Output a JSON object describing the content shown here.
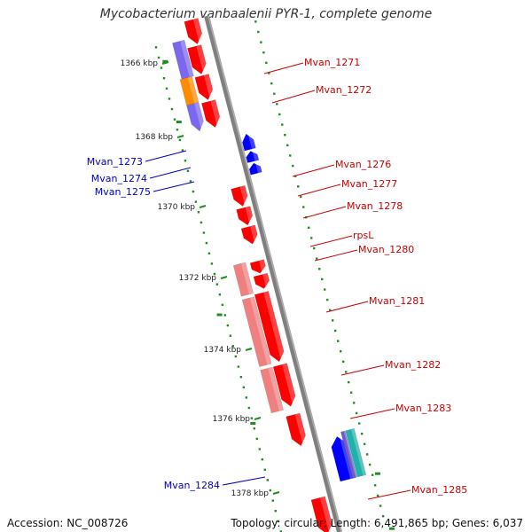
{
  "title": "Mycobacterium vanbaalenii PYR-1, complete genome",
  "footer": {
    "accession": "Accession: NC_008726",
    "stats": "Topology: circular; Length: 6,491,865 bp; Genes: 6,037"
  },
  "colors": {
    "backbone": "#7f7f7f",
    "forward_cds": "#ff0000",
    "forward_alt": "#f08080",
    "reverse_cds": "#0000ff",
    "purple_feature": "#7b68ee",
    "orange_feature": "#ff8c00",
    "teal_feature": "#20b2aa",
    "gc_skew": "#228b22",
    "forward_label": "#cc0000",
    "reverse_label": "#0000cc"
  },
  "ticks": [
    {
      "label": "1366 kbp"
    },
    {
      "label": "1368 kbp"
    },
    {
      "label": "1370 kbp"
    },
    {
      "label": "1372 kbp"
    },
    {
      "label": "1374 kbp"
    },
    {
      "label": "1376 kbp"
    },
    {
      "label": "1378 kbp"
    }
  ],
  "forward_labels": [
    {
      "text": "Mvan_1271"
    },
    {
      "text": "Mvan_1272"
    },
    {
      "text": "Mvan_1276"
    },
    {
      "text": "Mvan_1277"
    },
    {
      "text": "Mvan_1278"
    },
    {
      "text": "rpsL"
    },
    {
      "text": "Mvan_1280"
    },
    {
      "text": "Mvan_1281"
    },
    {
      "text": "Mvan_1282"
    },
    {
      "text": "Mvan_1283"
    },
    {
      "text": "Mvan_1285"
    }
  ],
  "reverse_labels": [
    {
      "text": "Mvan_1273"
    },
    {
      "text": "Mvan_1274"
    },
    {
      "text": "Mvan_1275"
    },
    {
      "text": "Mvan_1284"
    }
  ]
}
